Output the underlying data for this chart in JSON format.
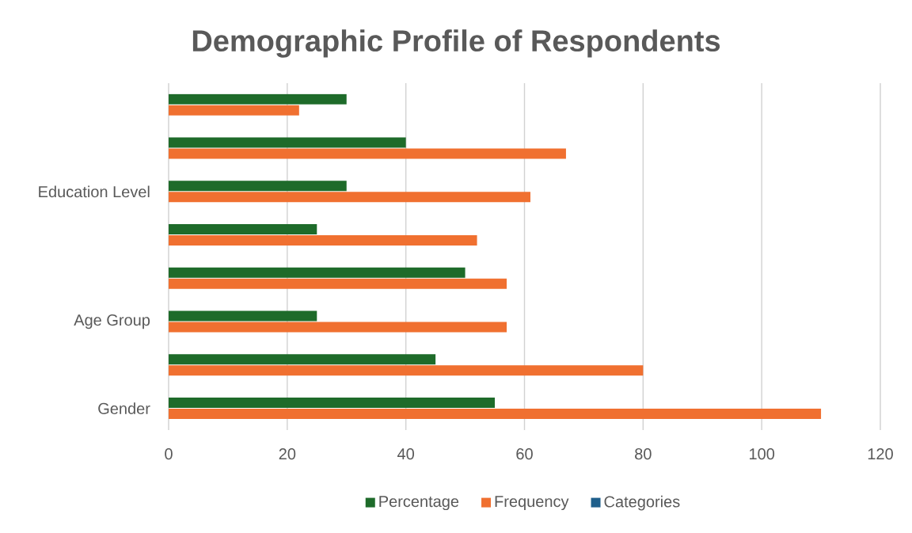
{
  "chart_data": {
    "type": "bar",
    "orientation": "horizontal",
    "title": "Demographic Profile of Respondents",
    "categories": [
      null,
      null,
      "Education Level",
      null,
      null,
      "Age Group",
      null,
      "Gender"
    ],
    "series": [
      {
        "name": "Percentage",
        "color": "#1e6b2a",
        "values": [
          30,
          40,
          30,
          25,
          50,
          25,
          45,
          55
        ]
      },
      {
        "name": "Frequency",
        "color": "#f07030",
        "values": [
          22,
          67,
          61,
          52,
          57,
          57,
          80,
          110
        ]
      },
      {
        "name": "Categories",
        "color": "#1f5f8b",
        "values": [
          null,
          null,
          null,
          null,
          null,
          null,
          null,
          null
        ]
      }
    ],
    "xlim": [
      0,
      120
    ],
    "xticks": [
      0,
      20,
      40,
      60,
      80,
      100,
      120
    ],
    "grid": "x",
    "legend": "bottom"
  }
}
